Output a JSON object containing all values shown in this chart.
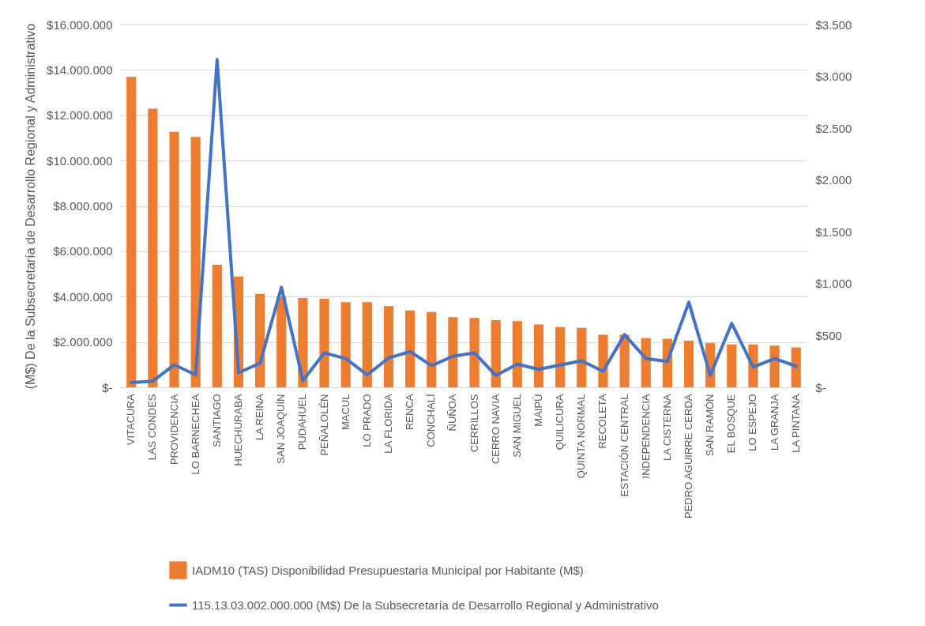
{
  "chart_data": {
    "type": "bar",
    "ylabel": "(M$) De la Subsecretaría de Desarrollo Regional y Administrativo",
    "categories": [
      "VITACURA",
      "LAS CONDES",
      "PROVIDENCIA",
      "LO BARNECHEA",
      "SANTIAGO",
      "HUECHURABA",
      "LA REINA",
      "SAN JOAQUÍN",
      "PUDAHUEL",
      "PEÑALOLÉN",
      "MACUL",
      "LO PRADO",
      "LA FLORIDA",
      "RENCA",
      "CONCHALÍ",
      "ÑUÑOA",
      "CERRILLOS",
      "CERRO NAVIA",
      "SAN MIGUEL",
      "MAIPÚ",
      "QUILICURA",
      "QUINTA NORMAL",
      "RECOLETA",
      "ESTACIÓN CENTRAL",
      "INDEPENDENCIA",
      "LA CISTERNA",
      "PEDRO AGUIRRE CERDA",
      "SAN RAMÓN",
      "EL BOSQUE",
      "LO ESPEJO",
      "LA GRANJA",
      "LA PINTANA"
    ],
    "series": [
      {
        "name": "IADM10 (TAS) Disponibilidad Presupuestaria Municipal por Habitante (M$)",
        "color": "#ed7d31",
        "values": [
          13690000,
          12290000,
          11270000,
          11040000,
          5400000,
          4890000,
          4120000,
          4000000,
          3940000,
          3900000,
          3760000,
          3760000,
          3580000,
          3390000,
          3320000,
          3090000,
          3060000,
          2960000,
          2920000,
          2770000,
          2660000,
          2620000,
          2320000,
          2320000,
          2170000,
          2140000,
          2060000,
          1950000,
          1890000,
          1890000,
          1840000,
          1760000
        ]
      },
      {
        "name": "115.13.03.002.000.000 (M$) De la Subsecretaría de Desarrollo Regional y Administrativo",
        "type": "line",
        "axis": "y2",
        "color": "#4472c4",
        "values": [
          46,
          60,
          217,
          120,
          3163,
          141,
          231,
          965,
          65,
          332,
          277,
          120,
          283,
          345,
          209,
          299,
          332,
          114,
          223,
          174,
          215,
          255,
          155,
          508,
          277,
          250,
          821,
          114,
          617,
          196,
          277,
          204
        ]
      }
    ],
    "ylim": [
      0,
      16000000
    ],
    "yticks": [
      {
        "value": 0,
        "label": "$-"
      },
      {
        "value": 2000000,
        "label": "$2.000.000"
      },
      {
        "value": 4000000,
        "label": "$4.000.000"
      },
      {
        "value": 6000000,
        "label": "$6.000.000"
      },
      {
        "value": 8000000,
        "label": "$8.000.000"
      },
      {
        "value": 10000000,
        "label": "$10.000.000"
      },
      {
        "value": 12000000,
        "label": "$12.000.000"
      },
      {
        "value": 14000000,
        "label": "$14.000.000"
      },
      {
        "value": 16000000,
        "label": "$16.000.000"
      }
    ],
    "y2lim": [
      0,
      3500
    ],
    "y2ticks": [
      {
        "value": 0,
        "label": "$-"
      },
      {
        "value": 500,
        "label": "$500"
      },
      {
        "value": 1000,
        "label": "$1.000"
      },
      {
        "value": 1500,
        "label": "$1.500"
      },
      {
        "value": 2000,
        "label": "$2.000"
      },
      {
        "value": 2500,
        "label": "$2.500"
      },
      {
        "value": 3000,
        "label": "$3.000"
      },
      {
        "value": 3500,
        "label": "$3.500"
      }
    ],
    "grid": "y",
    "legend": "bottom"
  }
}
